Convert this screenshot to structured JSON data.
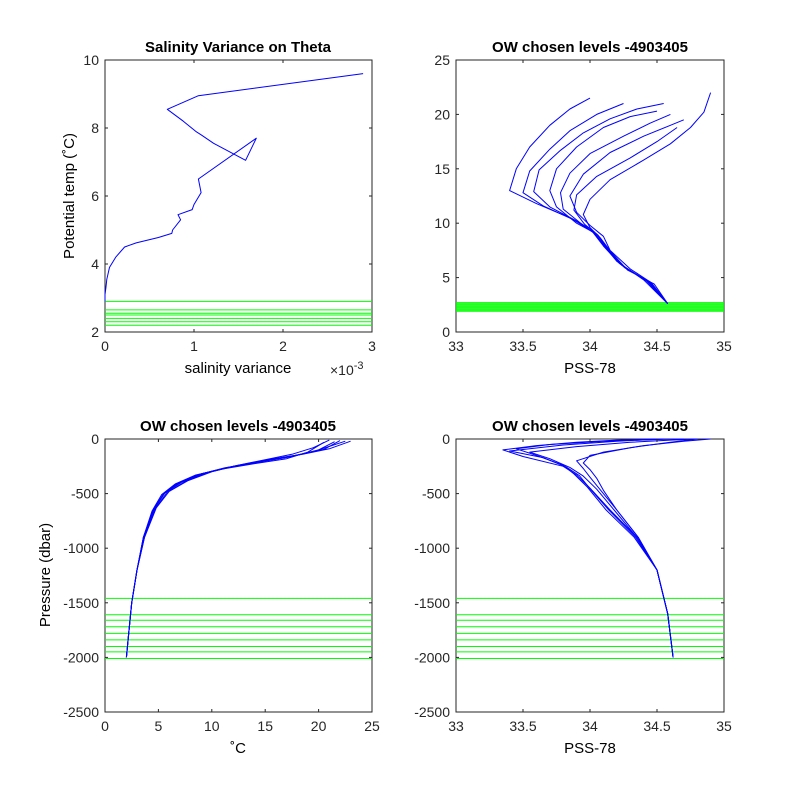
{
  "chart_data": [
    {
      "type": "line",
      "title": "Salinity Variance on Theta",
      "xlabel": "salinity variance",
      "ylabel": "Potential temp (˚C)",
      "xlim": [
        0,
        0.003
      ],
      "ylim": [
        2,
        10
      ],
      "x_tick_values": [
        0,
        0.001,
        0.002,
        0.003
      ],
      "x_tick_labels": [
        "0",
        "1",
        "2",
        "3"
      ],
      "x_exponent_label": "×10",
      "x_exponent": "-3",
      "y_tick_values": [
        2,
        4,
        6,
        8,
        10
      ],
      "y_tick_labels": [
        "2",
        "4",
        "6",
        "8",
        "10"
      ],
      "series": [
        {
          "color": "#0000ff",
          "x": [
            0.0029,
            0.00105,
            0.0007,
            0.00088,
            0.00102,
            0.00108,
            0.00122,
            0.00158,
            0.0017,
            0.00105,
            0.00108,
            0.001,
            0.00098,
            0.00082,
            0.00085,
            0.00076,
            0.00075,
            0.0006,
            0.00035,
            0.00022,
            0.00012,
            5e-05,
            2e-05,
            1e-05,
            0.0,
            0.0
          ],
          "y": [
            9.6,
            8.95,
            8.55,
            8.2,
            7.9,
            7.8,
            7.55,
            7.05,
            7.7,
            6.5,
            6.1,
            5.75,
            5.6,
            5.45,
            5.3,
            5.0,
            4.9,
            4.78,
            4.62,
            4.5,
            4.2,
            3.9,
            3.55,
            3.3,
            3.1,
            2.9
          ]
        }
      ],
      "reference_lines": {
        "color": "#00ff00",
        "orientation": "horizontal",
        "values": [
          2.2,
          2.3,
          2.4,
          2.5,
          2.55,
          2.65,
          2.9
        ]
      }
    },
    {
      "type": "line",
      "title": "OW chosen levels -4903405",
      "xlabel": "PSS-78",
      "ylabel": "",
      "xlim": [
        33,
        35
      ],
      "ylim": [
        0,
        25
      ],
      "x_tick_values": [
        33,
        33.5,
        34,
        34.5,
        35
      ],
      "x_tick_labels": [
        "33",
        "33.5",
        "34",
        "34.5",
        "35"
      ],
      "y_tick_values": [
        0,
        5,
        10,
        15,
        20,
        25
      ],
      "y_tick_labels": [
        "0",
        "5",
        "10",
        "15",
        "20",
        "25"
      ],
      "series": [
        {
          "color": "#0000ff",
          "x": [
            34.58,
            34.4,
            34.2,
            34.1,
            34.0,
            33.85,
            33.6,
            33.4,
            33.45,
            33.55,
            33.7,
            33.85,
            34.0
          ],
          "y": [
            2.6,
            4.8,
            6.5,
            8.0,
            9.5,
            10.5,
            11.8,
            13.0,
            15.0,
            17.0,
            19.0,
            20.5,
            21.5
          ]
        },
        {
          "color": "#0000ff",
          "x": [
            34.58,
            34.45,
            34.25,
            34.12,
            34.05,
            33.9,
            33.75,
            33.7,
            33.75,
            33.9,
            34.1,
            34.3,
            34.5
          ],
          "y": [
            2.6,
            4.5,
            6.0,
            7.8,
            9.0,
            10.0,
            11.5,
            13.0,
            15.0,
            17.0,
            18.8,
            19.8,
            20.3
          ]
        },
        {
          "color": "#0000ff",
          "x": [
            34.58,
            34.45,
            34.3,
            34.15,
            34.1,
            34.0,
            33.9,
            33.85,
            33.95,
            34.15,
            34.4,
            34.6,
            34.7
          ],
          "y": [
            2.6,
            4.6,
            5.8,
            7.5,
            8.8,
            9.8,
            11.0,
            12.5,
            14.5,
            16.5,
            18.0,
            19.0,
            19.5
          ]
        },
        {
          "color": "#0000ff",
          "x": [
            34.58,
            34.42,
            34.22,
            34.1,
            34.02,
            33.88,
            33.65,
            33.5,
            33.55,
            33.7,
            33.85,
            34.05,
            34.25
          ],
          "y": [
            2.6,
            4.7,
            6.3,
            7.9,
            9.2,
            10.3,
            11.6,
            12.8,
            14.8,
            16.8,
            18.5,
            20.0,
            21.0
          ]
        },
        {
          "color": "#0000ff",
          "x": [
            34.58,
            34.48,
            34.28,
            34.16,
            34.08,
            34.0,
            33.95,
            34.0,
            34.15,
            34.4,
            34.6,
            34.75,
            34.85,
            34.9
          ],
          "y": [
            2.6,
            4.4,
            5.7,
            7.3,
            8.6,
            9.6,
            10.8,
            12.2,
            14.0,
            15.8,
            17.3,
            18.8,
            20.2,
            22.0
          ]
        },
        {
          "color": "#0000ff",
          "x": [
            34.58,
            34.44,
            34.24,
            34.12,
            34.04,
            33.92,
            33.8,
            33.78,
            33.85,
            34.0,
            34.25,
            34.45,
            34.6
          ],
          "y": [
            2.6,
            4.55,
            6.1,
            7.7,
            9.0,
            10.1,
            11.3,
            12.8,
            14.6,
            16.4,
            18.0,
            19.2,
            20.0
          ]
        },
        {
          "color": "#0000ff",
          "x": [
            34.58,
            34.43,
            34.23,
            34.11,
            34.03,
            33.9,
            33.7,
            33.58,
            33.62,
            33.78,
            33.95,
            34.15,
            34.35,
            34.55
          ],
          "y": [
            2.6,
            4.65,
            6.2,
            7.85,
            9.1,
            10.2,
            11.5,
            12.9,
            14.9,
            16.7,
            18.3,
            19.6,
            20.5,
            21.0
          ]
        },
        {
          "color": "#0000ff",
          "x": [
            34.58,
            34.46,
            34.26,
            34.14,
            34.06,
            33.96,
            33.88,
            33.9,
            34.05,
            34.3,
            34.5,
            34.65
          ],
          "y": [
            2.6,
            4.5,
            5.9,
            7.6,
            8.9,
            9.9,
            11.2,
            12.6,
            14.3,
            16.0,
            17.5,
            18.8
          ]
        }
      ],
      "reference_lines": {
        "color": "#00ff00",
        "orientation": "horizontal",
        "values": [
          1.9,
          2.0,
          2.1,
          2.2,
          2.3,
          2.4,
          2.5,
          2.6,
          2.7
        ]
      }
    },
    {
      "type": "line",
      "title": "OW chosen levels -4903405",
      "xlabel": "˚C",
      "ylabel": "Pressure (dbar)",
      "xlim": [
        0,
        25
      ],
      "ylim": [
        -2500,
        0
      ],
      "x_tick_values": [
        0,
        5,
        10,
        15,
        20,
        25
      ],
      "x_tick_labels": [
        "0",
        "5",
        "10",
        "15",
        "20",
        "25"
      ],
      "y_tick_values": [
        -2500,
        -2000,
        -1500,
        -1000,
        -500,
        0
      ],
      "y_tick_labels": [
        "-2500",
        "-2000",
        "-1500",
        "-1000",
        "-500",
        "0"
      ],
      "series": [
        {
          "color": "#0000ff",
          "x": [
            2.0,
            2.2,
            2.5,
            3.0,
            3.6,
            4.5,
            5.5,
            7.0,
            9.0,
            11.5,
            14.5,
            17.5,
            20.0,
            22.5
          ],
          "y": [
            -2000,
            -1800,
            -1500,
            -1200,
            -900,
            -650,
            -500,
            -400,
            -320,
            -260,
            -210,
            -160,
            -100,
            -20
          ]
        },
        {
          "color": "#0000ff",
          "x": [
            2.0,
            2.2,
            2.5,
            3.0,
            3.7,
            4.7,
            5.8,
            7.5,
            9.5,
            12.0,
            15.0,
            17.5,
            19.5,
            21.0
          ],
          "y": [
            -2000,
            -1800,
            -1500,
            -1200,
            -900,
            -640,
            -490,
            -390,
            -310,
            -250,
            -190,
            -140,
            -80,
            -10
          ]
        },
        {
          "color": "#0000ff",
          "x": [
            2.0,
            2.2,
            2.5,
            3.0,
            3.6,
            4.4,
            5.3,
            6.6,
            8.5,
            11.0,
            14.0,
            17.0,
            19.0,
            20.5
          ],
          "y": [
            -2000,
            -1800,
            -1500,
            -1200,
            -900,
            -660,
            -510,
            -410,
            -330,
            -275,
            -225,
            -180,
            -120,
            -30
          ]
        },
        {
          "color": "#0000ff",
          "x": [
            2.0,
            2.2,
            2.5,
            3.0,
            3.7,
            4.8,
            6.0,
            7.8,
            10.0,
            12.5,
            15.5,
            18.5,
            21.0,
            23.0
          ],
          "y": [
            -2000,
            -1800,
            -1500,
            -1200,
            -900,
            -630,
            -480,
            -380,
            -300,
            -240,
            -185,
            -140,
            -90,
            -20
          ]
        },
        {
          "color": "#0000ff",
          "x": [
            2.0,
            2.2,
            2.5,
            3.0,
            3.6,
            4.6,
            5.6,
            7.2,
            9.2,
            11.8,
            14.8,
            17.8,
            20.5,
            22.0
          ],
          "y": [
            -2000,
            -1800,
            -1500,
            -1200,
            -900,
            -645,
            -495,
            -395,
            -315,
            -255,
            -200,
            -150,
            -95,
            -15
          ]
        },
        {
          "color": "#0000ff",
          "x": [
            2.0,
            2.2,
            2.5,
            3.0,
            3.65,
            4.55,
            5.45,
            6.8,
            8.8,
            11.2,
            14.2,
            17.2,
            19.8,
            21.5
          ],
          "y": [
            -2000,
            -1800,
            -1500,
            -1200,
            -900,
            -655,
            -505,
            -405,
            -325,
            -265,
            -215,
            -165,
            -110,
            -25
          ]
        }
      ],
      "reference_lines": {
        "color": "#00ff00",
        "orientation": "horizontal",
        "values": [
          -1460,
          -1610,
          -1660,
          -1720,
          -1780,
          -1840,
          -1900,
          -1950,
          -2010
        ]
      }
    },
    {
      "type": "line",
      "title": "OW chosen levels -4903405",
      "xlabel": "PSS-78",
      "ylabel": "",
      "xlim": [
        33,
        35
      ],
      "ylim": [
        -2500,
        0
      ],
      "x_tick_values": [
        33,
        33.5,
        34,
        34.5,
        35
      ],
      "x_tick_labels": [
        "33",
        "33.5",
        "34",
        "34.5",
        "35"
      ],
      "y_tick_values": [
        -2500,
        -2000,
        -1500,
        -1000,
        -500,
        0
      ],
      "y_tick_labels": [
        "-2500",
        "-2000",
        "-1500",
        "-1000",
        "-500",
        "0"
      ],
      "series": [
        {
          "color": "#0000ff",
          "x": [
            34.62,
            34.58,
            34.5,
            34.35,
            34.15,
            34.0,
            33.9,
            33.8,
            33.5,
            33.35,
            33.6,
            33.9,
            34.2,
            34.5
          ],
          "y": [
            -2000,
            -1600,
            -1200,
            -900,
            -650,
            -450,
            -330,
            -250,
            -160,
            -100,
            -60,
            -30,
            -10,
            0
          ]
        },
        {
          "color": "#0000ff",
          "x": [
            34.62,
            34.58,
            34.5,
            34.35,
            34.18,
            34.05,
            33.95,
            33.85,
            33.7,
            33.55,
            33.9,
            34.3,
            34.6,
            34.8
          ],
          "y": [
            -2000,
            -1600,
            -1200,
            -900,
            -650,
            -460,
            -340,
            -260,
            -180,
            -120,
            -70,
            -30,
            -10,
            0
          ]
        },
        {
          "color": "#0000ff",
          "x": [
            34.62,
            34.58,
            34.5,
            34.33,
            34.12,
            33.98,
            33.88,
            33.8,
            33.6,
            33.45,
            33.7,
            34.1,
            34.5,
            34.7
          ],
          "y": [
            -2000,
            -1600,
            -1200,
            -900,
            -650,
            -440,
            -320,
            -240,
            -150,
            -90,
            -50,
            -20,
            -5,
            0
          ]
        },
        {
          "color": "#0000ff",
          "x": [
            34.62,
            34.58,
            34.5,
            34.36,
            34.2,
            34.08,
            34.0,
            33.95,
            33.9,
            34.1,
            34.4,
            34.7,
            34.9
          ],
          "y": [
            -2000,
            -1600,
            -1200,
            -900,
            -650,
            -470,
            -350,
            -270,
            -200,
            -120,
            -60,
            -20,
            0
          ]
        },
        {
          "color": "#0000ff",
          "x": [
            34.62,
            34.58,
            34.5,
            34.34,
            34.14,
            34.0,
            33.92,
            33.82,
            33.65,
            33.4,
            33.8,
            34.2,
            34.55
          ],
          "y": [
            -2000,
            -1600,
            -1200,
            -900,
            -650,
            -455,
            -335,
            -255,
            -170,
            -110,
            -55,
            -20,
            0
          ]
        },
        {
          "color": "#0000ff",
          "x": [
            34.62,
            34.58,
            34.5,
            34.36,
            34.2,
            34.1,
            34.05,
            34.0,
            33.95,
            34.0,
            34.3,
            34.6,
            34.8
          ],
          "y": [
            -2000,
            -1600,
            -1200,
            -900,
            -650,
            -470,
            -360,
            -280,
            -220,
            -150,
            -80,
            -30,
            0
          ]
        }
      ],
      "reference_lines": {
        "color": "#00ff00",
        "orientation": "horizontal",
        "values": [
          -1460,
          -1610,
          -1660,
          -1720,
          -1780,
          -1840,
          -1900,
          -1950,
          -2010
        ]
      }
    }
  ]
}
